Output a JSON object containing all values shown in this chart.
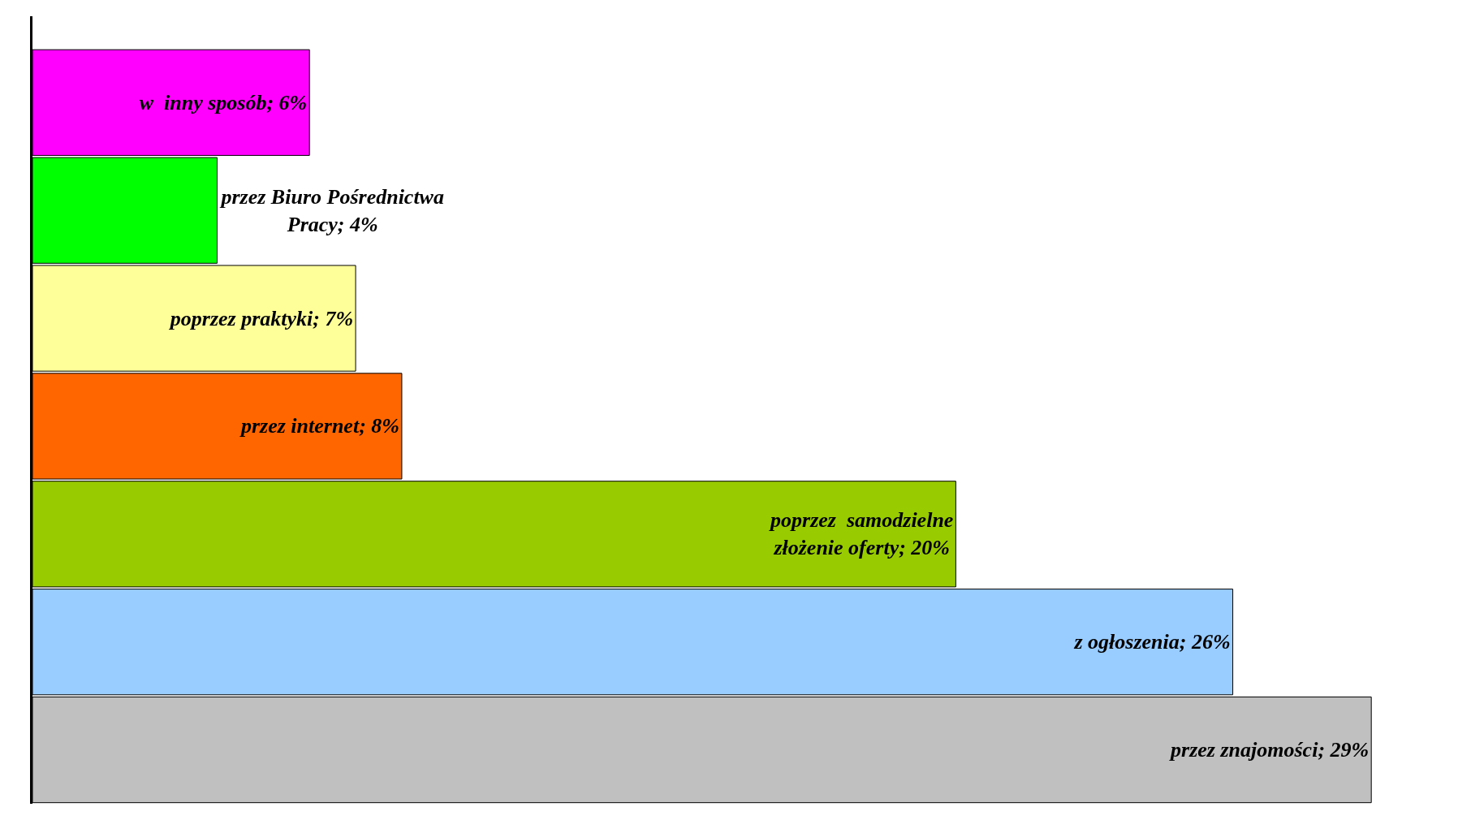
{
  "chart_data": {
    "type": "bar",
    "orientation": "horizontal",
    "categories": [
      null,
      null,
      null,
      null,
      null,
      null,
      null
    ],
    "values": [
      6,
      4,
      7,
      8,
      20,
      26,
      29
    ],
    "colors": [
      "#ff00ff",
      "#00ff00",
      "#ffff99",
      "#ff6600",
      "#99cc00",
      "#99ccff",
      "#c0c0c0"
    ],
    "value_labels": [
      "w  inny sposób; 6%",
      "przez Biuro Pośrednictwa\nPracy; 4%",
      "poprzez praktyki; 7%",
      "przez internet; 8%",
      "poprzez  samodzielne\nzłożenie oferty; 20%",
      "z ogłoszenia; 26%",
      "przez znajomości; 29%"
    ],
    "legend": false,
    "tick_labels": false
  }
}
